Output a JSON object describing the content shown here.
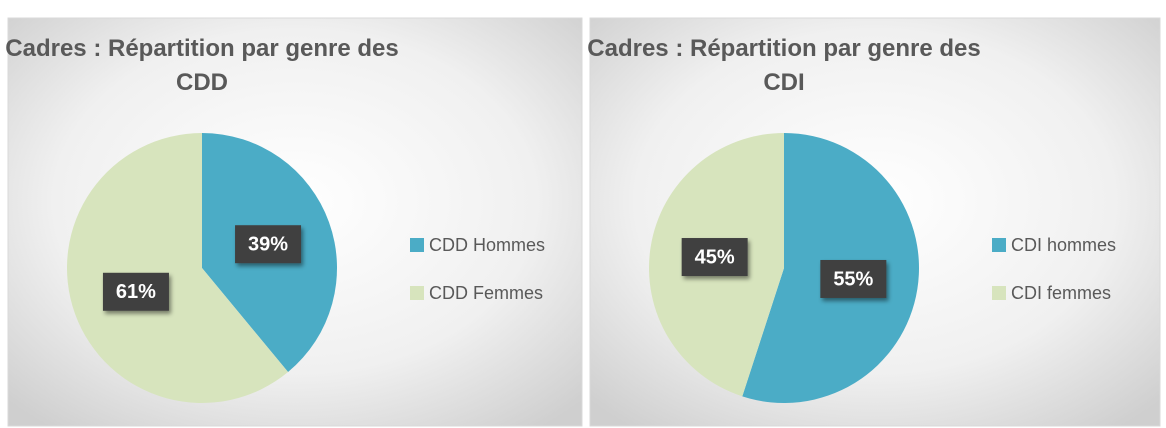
{
  "chart_data": [
    {
      "type": "pie",
      "title": "Cadres : Répartition par genre des CDD",
      "categories": [
        "CDD Hommes",
        "CDD Femmes"
      ],
      "values": [
        39,
        61
      ],
      "value_labels": [
        "39%",
        "61%"
      ],
      "colors": [
        "#4bacc6",
        "#d7e4bd"
      ],
      "legend": "right"
    },
    {
      "type": "pie",
      "title": "Cadres : Répartition par genre des CDI",
      "categories": [
        "CDI hommes",
        "CDI femmes"
      ],
      "values": [
        55,
        45
      ],
      "value_labels": [
        "55%",
        "45%"
      ],
      "colors": [
        "#4bacc6",
        "#d7e4bd"
      ],
      "legend": "right"
    }
  ]
}
